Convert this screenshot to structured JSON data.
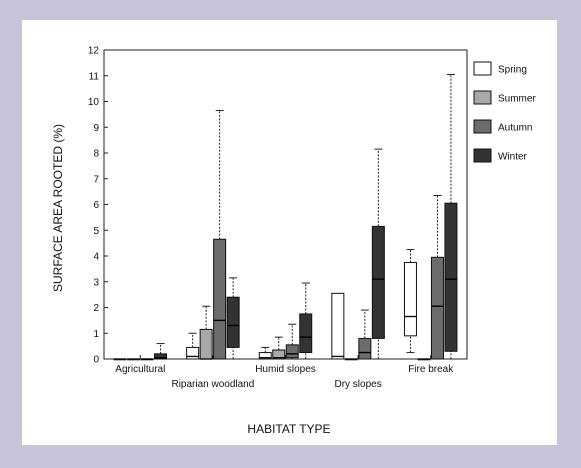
{
  "chart_data": {
    "type": "box",
    "ylabel": "SURFACE AREA ROOTED (%)",
    "xlabel": "HABITAT TYPE",
    "ylim": [
      0,
      12
    ],
    "yticks": [
      0,
      1,
      2,
      3,
      4,
      5,
      6,
      7,
      8,
      9,
      10,
      11,
      12
    ],
    "grid": false,
    "legend_position": "right",
    "categories": [
      "Agricultural",
      "Riparian woodland",
      "Humid slopes",
      "Dry slopes",
      "Fire break"
    ],
    "series": [
      {
        "name": "Spring",
        "color": "#ffffff",
        "boxes": [
          {
            "min": 0,
            "q1": 0,
            "median": 0,
            "q3": 0,
            "max": 0
          },
          {
            "min": 0,
            "q1": 0,
            "median": 0.1,
            "q3": 0.45,
            "max": 1.0
          },
          {
            "min": 0,
            "q1": 0,
            "median": 0.05,
            "q3": 0.25,
            "max": 0.45
          },
          {
            "min": 0,
            "q1": 0,
            "median": 0.1,
            "q3": 2.55,
            "max": 2.55
          },
          {
            "min": 0.25,
            "q1": 0.9,
            "median": 1.65,
            "q3": 3.75,
            "max": 4.25
          }
        ]
      },
      {
        "name": "Summer",
        "color": "#a8a8a8",
        "boxes": [
          {
            "min": 0,
            "q1": 0,
            "median": 0,
            "q3": 0,
            "max": 0
          },
          {
            "min": 0,
            "q1": 0,
            "median": 0,
            "q3": 1.15,
            "max": 2.05
          },
          {
            "min": 0,
            "q1": 0,
            "median": 0.05,
            "q3": 0.35,
            "max": 0.85
          },
          {
            "min": 0,
            "q1": 0,
            "median": 0,
            "q3": 0,
            "max": 0
          },
          {
            "min": 0,
            "q1": 0,
            "median": 0,
            "q3": 0,
            "max": 0
          }
        ]
      },
      {
        "name": "Autumn",
        "color": "#6c6c6c",
        "boxes": [
          {
            "min": 0,
            "q1": 0,
            "median": 0,
            "q3": 0,
            "max": 0
          },
          {
            "min": 0,
            "q1": 0,
            "median": 1.5,
            "q3": 4.65,
            "max": 9.65
          },
          {
            "min": 0,
            "q1": 0.05,
            "median": 0.2,
            "q3": 0.55,
            "max": 1.35
          },
          {
            "min": 0,
            "q1": 0,
            "median": 0.25,
            "q3": 0.8,
            "max": 1.9
          },
          {
            "min": 0,
            "q1": 0,
            "median": 2.05,
            "q3": 3.95,
            "max": 6.35
          }
        ]
      },
      {
        "name": "Winter",
        "color": "#333333",
        "boxes": [
          {
            "min": 0,
            "q1": 0,
            "median": 0.05,
            "q3": 0.2,
            "max": 0.6
          },
          {
            "min": 0,
            "q1": 0.45,
            "median": 1.3,
            "q3": 2.4,
            "max": 3.15
          },
          {
            "min": 0,
            "q1": 0.25,
            "median": 0.85,
            "q3": 1.75,
            "max": 2.95
          },
          {
            "min": 0,
            "q1": 0.8,
            "median": 3.1,
            "q3": 5.15,
            "max": 8.15
          },
          {
            "min": 0,
            "q1": 0.3,
            "median": 3.1,
            "q3": 6.05,
            "max": 11.05
          }
        ]
      }
    ]
  }
}
